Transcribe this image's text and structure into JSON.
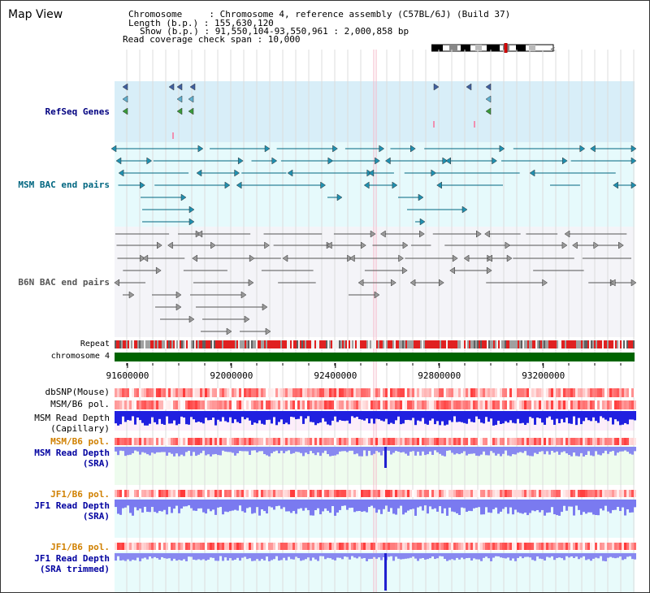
{
  "view_title": "Map View",
  "info": {
    "chromosome": "Chromosome     : Chromosome 4, reference assembly (C57BL/6J) (Build 37)",
    "length": "Length (b.p.) : 155,630,120",
    "show": "Show (b.p.) : 91,550,104-93,550,961 : 2,000,858 bp",
    "coverage": "Read coverage check span : 10,000"
  },
  "tracks": {
    "refseq": "RefSeq Genes",
    "msm_bac": "MSM BAC end pairs",
    "b6n_bac": "B6N BAC end pairs",
    "repeat": "Repeat",
    "chromosome": "chromosome 4",
    "dbsnp": "dbSNP(Mouse)",
    "msm_b6_pol": "MSM/B6 pol.",
    "msm_depth_cap_1": "MSM Read Depth",
    "msm_depth_cap_2": "(Capillary)",
    "msm_b6_pol_2": "MSM/B6 pol.",
    "msm_depth_sra_1": "MSM Read Depth",
    "msm_depth_sra_2": "(SRA)",
    "jf1_b6_pol": "JF1/B6 pol.",
    "jf1_depth_sra_1": "JF1 Read Depth",
    "jf1_depth_sra_2": "(SRA)",
    "jf1_b6_pol_2": "JF1/B6 pol.",
    "jf1_depth_trim_1": "JF1 Read Depth",
    "jf1_depth_trim_2": "(SRA trimmed)"
  },
  "axis": {
    "ticks": [
      "91600000",
      "92000000",
      "92400000",
      "92800000",
      "93200000"
    ],
    "tick_values": [
      91600000,
      92000000,
      92400000,
      92800000,
      93200000
    ],
    "range": [
      91550104,
      93550961
    ]
  },
  "colors": {
    "refseq_label": "#000080",
    "msm_label": "#006680",
    "b6n_label": "#555555",
    "orange": "#d08000",
    "blue": "#0000a0",
    "chrom_bar": "#006400",
    "refseq_bg": "#d8eef8",
    "msm_bg": "#e6fafc",
    "b6n_bg": "#f4f4f8"
  }
}
